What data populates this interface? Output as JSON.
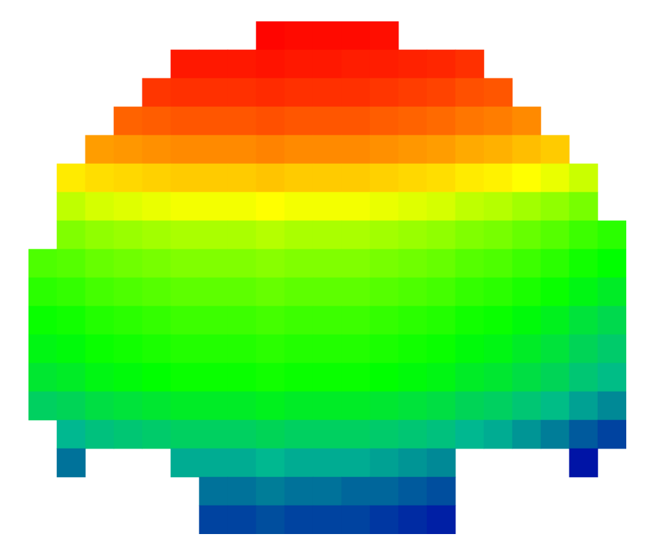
{
  "chart_data": {
    "type": "heatmap",
    "tick_labels": false,
    "grid": false,
    "xlim": [
      40,
      880
    ],
    "ylim": [
      30,
      750
    ],
    "zlim": [
      0,
      1
    ],
    "x": [
      60,
      100,
      140,
      180,
      220,
      260,
      300,
      340,
      380,
      420,
      460,
      500,
      540,
      580,
      620,
      660,
      700,
      740,
      780,
      820,
      860
    ],
    "y": [
      50,
      90,
      130,
      170,
      210,
      250,
      290,
      330,
      370,
      410,
      450,
      490,
      530,
      570,
      610,
      650,
      690,
      730
    ],
    "z": [
      [
        null,
        null,
        null,
        null,
        null,
        null,
        null,
        null,
        0.99,
        0.98,
        0.98,
        0.98,
        0.97,
        null,
        null,
        null,
        null,
        null,
        null,
        null,
        null
      ],
      [
        null,
        null,
        null,
        null,
        null,
        0.95,
        0.95,
        0.95,
        0.96,
        0.95,
        0.95,
        0.94,
        0.94,
        0.93,
        0.92,
        0.9,
        null,
        null,
        null,
        null,
        null
      ],
      [
        null,
        null,
        null,
        null,
        0.89,
        0.9,
        0.9,
        0.9,
        0.91,
        0.9,
        0.9,
        0.9,
        0.89,
        0.88,
        0.87,
        0.85,
        0.84,
        null,
        null,
        null,
        null
      ],
      [
        null,
        null,
        null,
        0.82,
        0.83,
        0.84,
        0.84,
        0.84,
        0.85,
        0.84,
        0.84,
        0.84,
        0.83,
        0.82,
        0.81,
        0.79,
        0.78,
        0.76,
        null,
        null,
        null
      ],
      [
        null,
        null,
        0.73,
        0.74,
        0.75,
        0.76,
        0.76,
        0.76,
        0.77,
        0.76,
        0.76,
        0.76,
        0.75,
        0.74,
        0.73,
        0.71,
        0.7,
        0.68,
        0.66,
        null,
        null
      ],
      [
        null,
        0.61,
        0.63,
        0.64,
        0.65,
        0.66,
        0.66,
        0.66,
        0.67,
        0.66,
        0.66,
        0.66,
        0.65,
        0.64,
        0.63,
        0.61,
        0.6,
        0.58,
        0.56,
        0.53,
        null
      ],
      [
        null,
        0.52,
        0.54,
        0.55,
        0.56,
        0.57,
        0.57,
        0.57,
        0.58,
        0.57,
        0.57,
        0.57,
        0.56,
        0.55,
        0.54,
        0.52,
        0.51,
        0.49,
        0.47,
        0.44,
        null
      ],
      [
        null,
        0.45,
        0.47,
        0.48,
        0.49,
        0.5,
        0.5,
        0.5,
        0.51,
        0.5,
        0.5,
        0.5,
        0.49,
        0.48,
        0.47,
        0.45,
        0.44,
        0.42,
        0.4,
        0.37,
        0.35
      ],
      [
        0.39,
        0.4,
        0.42,
        0.43,
        0.44,
        0.45,
        0.45,
        0.45,
        0.46,
        0.45,
        0.45,
        0.45,
        0.44,
        0.43,
        0.42,
        0.4,
        0.39,
        0.37,
        0.35,
        0.32,
        0.3
      ],
      [
        0.35,
        0.36,
        0.38,
        0.39,
        0.4,
        0.41,
        0.41,
        0.41,
        0.42,
        0.41,
        0.41,
        0.41,
        0.4,
        0.39,
        0.38,
        0.36,
        0.35,
        0.33,
        0.31,
        0.28,
        0.26
      ],
      [
        0.31,
        0.32,
        0.34,
        0.35,
        0.36,
        0.37,
        0.37,
        0.37,
        0.38,
        0.37,
        0.37,
        0.37,
        0.36,
        0.35,
        0.34,
        0.32,
        0.31,
        0.29,
        0.27,
        0.24,
        0.22
      ],
      [
        0.28,
        0.29,
        0.31,
        0.32,
        0.33,
        0.34,
        0.34,
        0.34,
        0.35,
        0.34,
        0.34,
        0.34,
        0.33,
        0.32,
        0.31,
        0.29,
        0.28,
        0.26,
        0.24,
        0.21,
        0.19
      ],
      [
        0.25,
        0.26,
        0.28,
        0.29,
        0.3,
        0.31,
        0.31,
        0.31,
        0.32,
        0.31,
        0.31,
        0.31,
        0.3,
        0.29,
        0.28,
        0.26,
        0.25,
        0.23,
        0.21,
        0.18,
        0.16
      ],
      [
        0.2,
        0.21,
        0.23,
        0.24,
        0.25,
        0.26,
        0.26,
        0.26,
        0.27,
        0.26,
        0.26,
        0.26,
        0.25,
        0.24,
        0.23,
        0.21,
        0.2,
        0.18,
        0.16,
        0.13,
        0.11
      ],
      [
        null,
        0.15,
        0.17,
        0.18,
        0.19,
        0.2,
        0.2,
        0.2,
        0.21,
        0.2,
        0.2,
        0.2,
        0.19,
        0.18,
        0.17,
        0.15,
        0.14,
        0.12,
        0.1,
        0.07,
        0.05
      ],
      [
        null,
        0.09,
        null,
        null,
        null,
        0.14,
        0.14,
        0.14,
        0.15,
        0.14,
        0.14,
        0.14,
        0.13,
        0.12,
        0.11,
        null,
        null,
        null,
        null,
        0.01,
        null
      ],
      [
        null,
        null,
        null,
        null,
        null,
        null,
        0.09,
        0.09,
        0.1,
        0.09,
        0.09,
        0.08,
        0.08,
        0.07,
        0.06,
        null,
        null,
        null,
        null,
        null,
        null
      ],
      [
        null,
        null,
        null,
        null,
        null,
        null,
        0.05,
        0.05,
        0.06,
        0.05,
        0.05,
        0.05,
        0.04,
        0.03,
        0.02,
        null,
        null,
        null,
        null,
        null,
        null
      ]
    ]
  }
}
